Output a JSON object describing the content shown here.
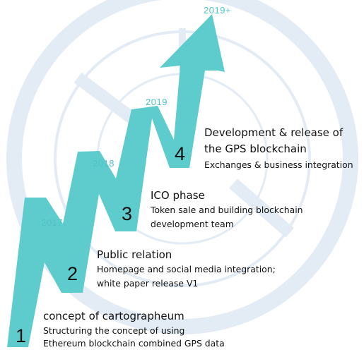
{
  "colors": {
    "arrow": "#5ecccc",
    "watermark": "#e3ecf5",
    "text": "#111111",
    "year": "#4fc4c8"
  },
  "steps": [
    {
      "number": "1",
      "year": "2017",
      "title": "concept of cartographeum",
      "lines": [
        "Structuring the concept of using",
        "Ethereum blockchain combined GPS data"
      ]
    },
    {
      "number": "2",
      "year": "2018",
      "title": "Public relation",
      "lines": [
        "Homepage and social media integration;",
        "white paper release V1"
      ]
    },
    {
      "number": "3",
      "year": "2019",
      "title": "ICO phase",
      "lines": [
        "Token sale and building blockchain",
        "development team"
      ]
    },
    {
      "number": "4",
      "year": "2019+",
      "title_lines": [
        "Development & release of",
        "the GPS blockchain"
      ],
      "lines": [
        "Exchanges & business integration"
      ]
    }
  ]
}
